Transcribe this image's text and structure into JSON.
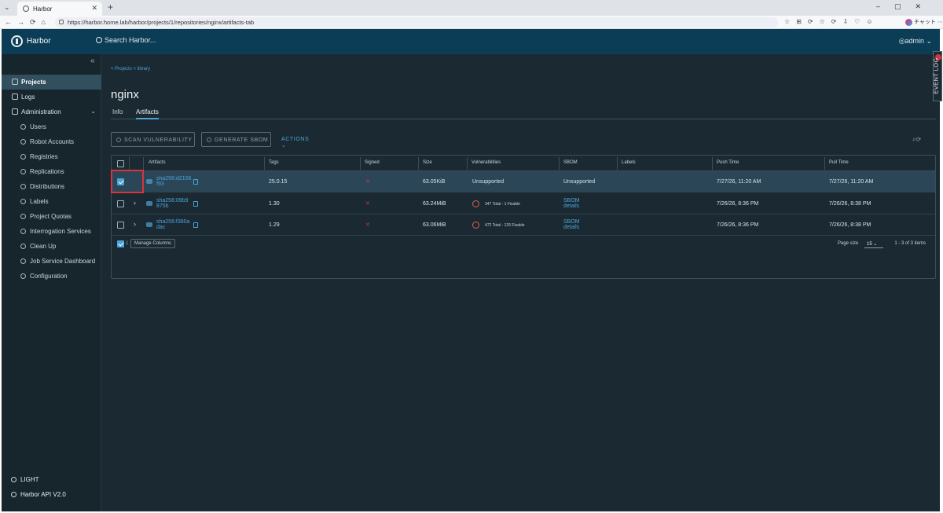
{
  "browser": {
    "tab_title": "Harbor",
    "url": "https://harbor.home.lab/harbor/projects/1/repositories/nginx/artifacts-tab",
    "profile_label": "チャット"
  },
  "header": {
    "brand": "Harbor",
    "search_placeholder": "Search Harbor...",
    "user": "admin"
  },
  "sidebar": {
    "items": [
      {
        "label": "Projects"
      },
      {
        "label": "Logs"
      },
      {
        "label": "Administration"
      }
    ],
    "admin_items": [
      {
        "label": "Users"
      },
      {
        "label": "Robot Accounts"
      },
      {
        "label": "Registries"
      },
      {
        "label": "Replications"
      },
      {
        "label": "Distributions"
      },
      {
        "label": "Labels"
      },
      {
        "label": "Project Quotas"
      },
      {
        "label": "Interrogation Services"
      },
      {
        "label": "Clean Up"
      },
      {
        "label": "Job Service Dashboard"
      },
      {
        "label": "Configuration"
      }
    ],
    "bottom": {
      "theme": "LIGHT",
      "api": "Harbor API V2.0"
    }
  },
  "main": {
    "breadcrumbs": "< Projects  < library",
    "title": "nginx",
    "tabs": [
      {
        "label": "Info"
      },
      {
        "label": "Artifacts"
      }
    ],
    "toolbar": {
      "scan": "SCAN VULNERABILITY",
      "sbom": "GENERATE SBOM",
      "actions": "ACTIONS ⌄"
    },
    "columns": [
      "Artifacts",
      "Tags",
      "Signed",
      "Size",
      "Vulnerabilities",
      "SBOM",
      "Labels",
      "Push Time",
      "Pull Time"
    ],
    "rows": [
      {
        "digest_1": "sha256:d2156",
        "digest_2": "f93",
        "tags": "25.0.15",
        "size": "63.05KiB",
        "vuln": "Unsupported",
        "sbom": "Unsupported",
        "push": "7/27/26, 11:20 AM",
        "pull": "7/27/26, 11:20 AM"
      },
      {
        "digest_1": "sha256:09b9",
        "digest_2": "875b",
        "tags": "1.30",
        "size": "63.24MiB",
        "vuln_total": "347 Total",
        "vuln_fixable": "1 Fixable",
        "sbom_1": "SBOM",
        "sbom_2": "details",
        "push": "7/26/26, 8:36 PM",
        "pull": "7/26/26, 8:38 PM"
      },
      {
        "digest_1": "sha256:f380a",
        "digest_2": "dac",
        "tags": "1.29",
        "size": "63.06MiB",
        "vuln_total": "472 Total",
        "vuln_fixable": "126 Fixable",
        "sbom_1": "SBOM",
        "sbom_2": "details",
        "push": "7/26/26, 8:36 PM",
        "pull": "7/26/26, 8:38 PM"
      }
    ],
    "footer": {
      "selected_count": "1",
      "manage_columns": "Manage Columns",
      "page_size_label": "Page size",
      "page_size": "15",
      "range": "1 - 3 of 3 items"
    }
  },
  "event_log": "EVENT LOG"
}
